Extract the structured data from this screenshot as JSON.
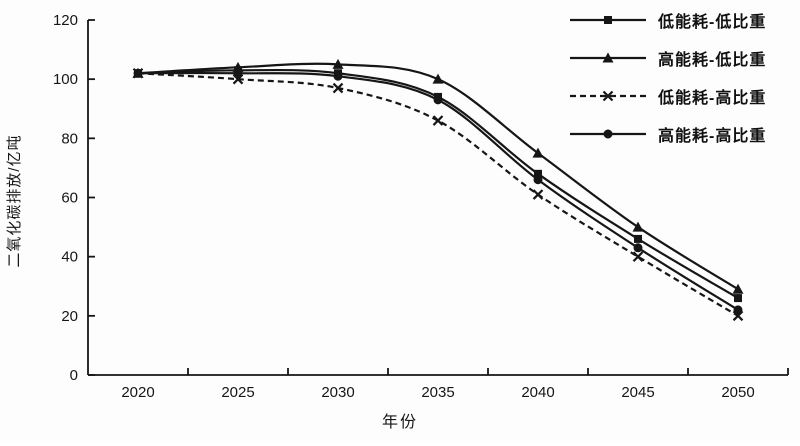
{
  "chart_data": {
    "type": "line",
    "title": "",
    "xlabel": "年份",
    "ylabel": "二氧化碳排放/亿吨",
    "ylim": [
      0,
      120
    ],
    "yticks": [
      0,
      20,
      40,
      60,
      80,
      100,
      120
    ],
    "categories": [
      "2020",
      "2025",
      "2030",
      "2035",
      "2040",
      "2045",
      "2050"
    ],
    "grid": false,
    "legend_position": "top-right",
    "line_color": "#161616",
    "background": "#fdfdfd",
    "series": [
      {
        "name": "低能耗-低比重",
        "marker": "square",
        "line": "solid",
        "values": [
          102,
          103,
          102,
          94,
          68,
          46,
          26
        ]
      },
      {
        "name": "高能耗-低比重",
        "marker": "triangle",
        "line": "solid",
        "values": [
          102,
          104,
          105,
          100,
          75,
          50,
          29
        ]
      },
      {
        "name": "低能耗-高比重",
        "marker": "x",
        "line": "dashed",
        "values": [
          102,
          100,
          97,
          86,
          61,
          40,
          20
        ]
      },
      {
        "name": "高能耗-高比重",
        "marker": "circle",
        "line": "solid",
        "values": [
          102,
          102,
          101,
          93,
          66,
          43,
          22
        ]
      }
    ]
  }
}
